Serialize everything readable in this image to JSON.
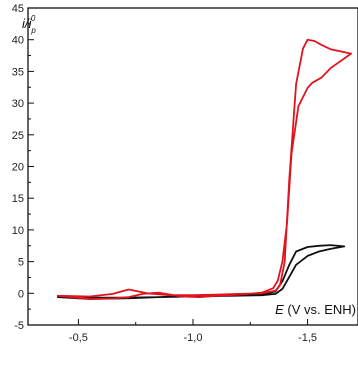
{
  "chart_data": {
    "type": "line",
    "title": "",
    "xlabel": "E (V vs. ENH)",
    "ylabel": "i/i_p^0",
    "ylabel_parts": {
      "main": "i/i",
      "sub": "p",
      "sup": "0"
    },
    "xlabel_parts": {
      "italic": "E",
      "rest": " (V vs. ENH)"
    },
    "xlim": [
      -0.28,
      -1.72
    ],
    "ylim": [
      -5,
      45
    ],
    "x_axis_reversed": true,
    "x_ticks": [
      -0.5,
      -1.0,
      -1.5
    ],
    "x_tick_labels": [
      "-0,5",
      "-1,0",
      "-1,5"
    ],
    "y_ticks": [
      -5,
      0,
      5,
      10,
      15,
      20,
      25,
      30,
      35,
      40,
      45
    ],
    "y_tick_labels": [
      "-5",
      "0",
      "5",
      "10",
      "15",
      "20",
      "25",
      "30",
      "35",
      "40",
      "45"
    ],
    "grid": false,
    "legend": "none",
    "series": [
      {
        "color": "#111111",
        "x": [
          -0.41,
          -0.55,
          -0.7,
          -0.85,
          -1.0,
          -1.15,
          -1.3,
          -1.36,
          -1.39,
          -1.42,
          -1.45,
          -1.5,
          -1.55,
          -1.6,
          -1.66,
          -1.6,
          -1.55,
          -1.5,
          -1.45,
          -1.42,
          -1.39,
          -1.36,
          -1.3,
          -1.15,
          -1.0,
          -0.85,
          -0.7,
          -0.55,
          -0.41
        ],
        "y": [
          -0.6,
          -0.7,
          -0.7,
          -0.6,
          -0.5,
          -0.4,
          -0.3,
          -0.1,
          0.7,
          2.6,
          4.5,
          5.9,
          6.6,
          7.0,
          7.4,
          7.6,
          7.5,
          7.3,
          6.6,
          4.5,
          1.9,
          0.3,
          -0.2,
          -0.3,
          -0.4,
          -0.6,
          -0.8,
          -0.9,
          -0.6
        ]
      },
      {
        "color": "#e0141e",
        "x": [
          -0.41,
          -0.55,
          -0.65,
          -0.72,
          -0.8,
          -0.9,
          -1.0,
          -1.1,
          -1.2,
          -1.3,
          -1.36,
          -1.38,
          -1.4,
          -1.42,
          -1.45,
          -1.48,
          -1.5,
          -1.53,
          -1.56,
          -1.6,
          -1.69,
          -1.6,
          -1.56,
          -1.52,
          -1.5,
          -1.46,
          -1.43,
          -1.41,
          -1.39,
          -1.37,
          -1.35,
          -1.3,
          -1.2,
          -1.1,
          -1.03,
          -0.95,
          -0.85,
          -0.78,
          -0.72,
          -0.65,
          -0.55,
          -0.41
        ],
        "y": [
          -0.4,
          -0.5,
          -0.1,
          0.6,
          0.0,
          -0.3,
          -0.3,
          -0.2,
          -0.1,
          0.0,
          0.4,
          1.3,
          5.0,
          18.0,
          33.0,
          38.6,
          40.0,
          39.8,
          39.2,
          38.5,
          37.8,
          35.5,
          34.0,
          33.2,
          32.4,
          29.5,
          22.0,
          11.0,
          5.0,
          2.0,
          0.8,
          0.1,
          -0.2,
          -0.4,
          -0.6,
          -0.5,
          0.1,
          -0.1,
          -0.6,
          -0.8,
          -0.9,
          -0.4
        ]
      }
    ]
  }
}
